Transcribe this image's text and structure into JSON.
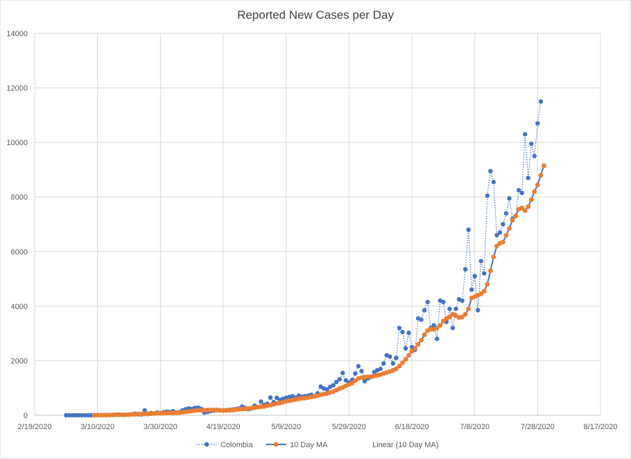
{
  "chart_data": {
    "type": "line",
    "title": "Reported New Cases per Day",
    "xlabel": "",
    "ylabel": "",
    "ylim": [
      0,
      14000
    ],
    "y_ticks": [
      0,
      2000,
      4000,
      6000,
      8000,
      10000,
      12000,
      14000
    ],
    "x_ticks": [
      "2/19/2020",
      "3/10/2020",
      "3/30/2020",
      "4/19/2020",
      "5/9/2020",
      "5/29/2020",
      "6/18/2020",
      "7/8/2020",
      "7/28/2020",
      "8/17/2020"
    ],
    "x_range_days": [
      0,
      180
    ],
    "x_unit": "days since 2/19/2020",
    "grid": "vertical and horizontal",
    "legend_position": "bottom",
    "series": [
      {
        "name": "Colombia",
        "style": "dotted line with markers",
        "color": "#4472C4",
        "x_start_day": 10,
        "values": [
          0,
          0,
          0,
          0,
          0,
          0,
          0,
          0,
          0,
          0,
          6,
          3,
          5,
          15,
          10,
          16,
          28,
          30,
          20,
          25,
          30,
          40,
          60,
          50,
          30,
          180,
          40,
          80,
          70,
          100,
          80,
          110,
          130,
          120,
          150,
          100,
          110,
          180,
          220,
          250,
          230,
          270,
          280,
          230,
          100,
          120,
          150,
          170,
          200,
          180,
          180,
          190,
          200,
          210,
          230,
          250,
          320,
          270,
          220,
          250,
          350,
          300,
          500,
          380,
          420,
          650,
          480,
          640,
          560,
          600,
          640,
          670,
          700,
          640,
          720,
          680,
          700,
          720,
          750,
          700,
          800,
          1050,
          980,
          950,
          1040,
          1100,
          1220,
          1320,
          1550,
          1280,
          1200,
          1300,
          1530,
          1800,
          1620,
          1250,
          1350,
          1400,
          1580,
          1650,
          1700,
          1900,
          2200,
          2150,
          1900,
          2100,
          3200,
          3050,
          2450,
          3020,
          2500,
          2400,
          3550,
          3500,
          3850,
          4150,
          3200,
          3300,
          2800,
          4200,
          4150,
          3420,
          3900,
          3200,
          3900,
          4250,
          4200,
          5350,
          6800,
          4600,
          5100,
          3850,
          5650,
          5200,
          8050,
          8950,
          8550,
          6600,
          6700,
          7000,
          7400,
          7950,
          7200,
          7300,
          8250,
          8150,
          10300,
          8700,
          9950,
          9500,
          10700,
          11500
        ]
      },
      {
        "name": "10 Day MA",
        "style": "solid line with markers",
        "color": "#ED7D31",
        "line_color": "#4472C4",
        "x_start_day": 19,
        "values": [
          1,
          3,
          4,
          6,
          7,
          9,
          12,
          15,
          16,
          18,
          20,
          24,
          28,
          32,
          34,
          48,
          49,
          53,
          58,
          65,
          70,
          75,
          80,
          85,
          92,
          85,
          92,
          95,
          110,
          125,
          140,
          155,
          170,
          180,
          185,
          187,
          192,
          195,
          192,
          185,
          180,
          178,
          180,
          182,
          190,
          205,
          220,
          230,
          235,
          245,
          265,
          280,
          300,
          310,
          325,
          355,
          370,
          400,
          430,
          450,
          480,
          510,
          530,
          555,
          580,
          600,
          620,
          630,
          650,
          670,
          690,
          720,
          750,
          780,
          800,
          830,
          870,
          920,
          980,
          1020,
          1080,
          1130,
          1180,
          1270,
          1350,
          1380,
          1400,
          1410,
          1420,
          1440,
          1460,
          1490,
          1530,
          1570,
          1600,
          1650,
          1700,
          1800,
          1920,
          2050,
          2200,
          2350,
          2450,
          2600,
          2750,
          2950,
          3100,
          3150,
          3150,
          3200,
          3300,
          3450,
          3550,
          3600,
          3700,
          3650,
          3580,
          3600,
          3700,
          3900,
          4300,
          4350,
          4400,
          4450,
          4550,
          4800,
          5300,
          5800,
          6200,
          6300,
          6350,
          6600,
          6850,
          7150,
          7300,
          7550,
          7600,
          7500,
          7650,
          7900,
          8200,
          8450,
          8800,
          9150
        ]
      },
      {
        "name": "Linear (10 Day MA)",
        "style": "trendline (not visibly drawn)",
        "color": "#ED7D31"
      }
    ]
  }
}
